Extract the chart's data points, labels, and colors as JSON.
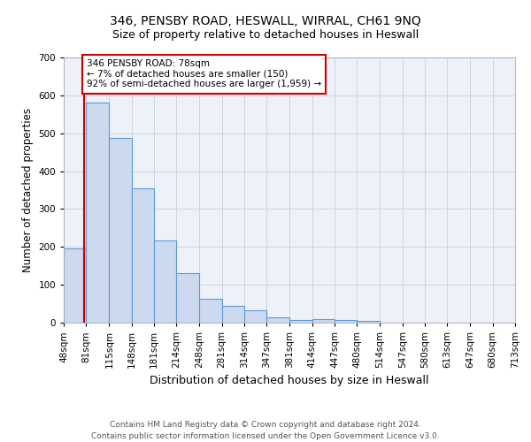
{
  "title1": "346, PENSBY ROAD, HESWALL, WIRRAL, CH61 9NQ",
  "title2": "Size of property relative to detached houses in Heswall",
  "xlabel": "Distribution of detached houses by size in Heswall",
  "ylabel": "Number of detached properties",
  "footnote": "Contains HM Land Registry data © Crown copyright and database right 2024.\nContains public sector information licensed under the Open Government Licence v3.0.",
  "bar_edges": [
    48,
    81,
    115,
    148,
    181,
    214,
    248,
    281,
    314,
    347,
    381,
    414,
    447,
    480,
    514,
    547,
    580,
    613,
    647,
    680,
    713
  ],
  "bar_heights": [
    197,
    580,
    487,
    355,
    218,
    130,
    62,
    45,
    33,
    15,
    8,
    10,
    8,
    5,
    0,
    0,
    0,
    0,
    0,
    0
  ],
  "bar_color": "#ccd9ee",
  "bar_edge_color": "#5b9bd5",
  "bar_linewidth": 0.8,
  "grid_color": "#c8d0de",
  "bg_color": "#edf1f8",
  "red_line_x": 78,
  "red_line_color": "#cc0000",
  "annotation_text": "346 PENSBY ROAD: 78sqm\n← 7% of detached houses are smaller (150)\n92% of semi-detached houses are larger (1,959) →",
  "annotation_box_color": "#ffffff",
  "annotation_border_color": "#cc0000",
  "ylim": [
    0,
    700
  ],
  "yticks": [
    0,
    100,
    200,
    300,
    400,
    500,
    600,
    700
  ],
  "title1_fontsize": 10,
  "title2_fontsize": 9,
  "xlabel_fontsize": 9,
  "ylabel_fontsize": 8.5,
  "tick_fontsize": 7.5,
  "annotation_fontsize": 7.5,
  "footnote_fontsize": 6.5
}
